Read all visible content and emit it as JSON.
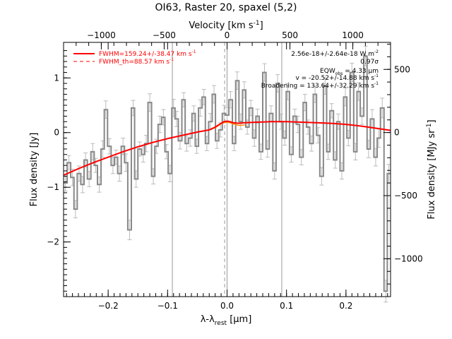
{
  "chart_data": {
    "type": "line",
    "title": "OI63, Raster 20, spaxel (5,2)",
    "xlabel": "λ-λ",
    "xlabel_sub": "rest",
    "xlabel_unit": "[μm]",
    "ylabel": "Flux density [Jy]",
    "ylabel_right": "Flux density [MJy sr",
    "ylabel_right_sup": "-1",
    "ylabel_right_close": "]",
    "top_axis_label": "Velocity [km s",
    "top_axis_sup": "-1",
    "top_axis_close": "]",
    "xlim": [
      -0.275,
      0.275
    ],
    "ylim": [
      -3.0,
      1.65
    ],
    "right_ylim": [
      -1300,
      714
    ],
    "top_xlim": [
      -1300,
      1300
    ],
    "x_ticks": [
      -0.2,
      -0.1,
      0.0,
      0.1,
      0.2
    ],
    "x_tick_labels": [
      "−0.2",
      "−0.1",
      "0.0",
      "0.1",
      "0.2"
    ],
    "y_ticks": [
      -2,
      -1,
      0,
      1
    ],
    "y_tick_labels": [
      "−2",
      "−1",
      "0",
      "1"
    ],
    "right_ticks": [
      -1000,
      -500,
      0,
      500
    ],
    "right_tick_labels": [
      "−1000",
      "−500",
      "0",
      "500"
    ],
    "top_ticks": [
      -1000,
      -500,
      0,
      500,
      1000
    ],
    "top_tick_labels": [
      "−1000",
      "−500",
      "0",
      "500",
      "1000"
    ],
    "vertical_lines": [
      -0.092,
      0.0,
      0.092
    ],
    "dashed_vline": -0.004,
    "legend": [
      {
        "label": "FWHM=159.24+/-38.47 km s",
        "sup": "-1",
        "style": "solid",
        "color": "#ff0000"
      },
      {
        "label": "FWHM_th=88.57 km s",
        "sup": "-1",
        "style": "dashed",
        "color": "#ff0000"
      }
    ],
    "annotations": [
      "2.56e-18+/-2.64e-18 W m",
      "0.97σ",
      "EQW",
      "= 4.33 μm",
      "v = -20.52+/-14.88 km s",
      "Broadening = 133.64+/-32.29 km s"
    ],
    "annotation_subs": [
      "-2",
      "obs",
      "-1",
      "-1"
    ],
    "series": [
      {
        "name": "data",
        "color": "#888888",
        "x": [
          -0.272,
          -0.266,
          -0.26,
          -0.255,
          -0.249,
          -0.243,
          -0.238,
          -0.232,
          -0.226,
          -0.221,
          -0.215,
          -0.209,
          -0.204,
          -0.198,
          -0.192,
          -0.187,
          -0.181,
          -0.175,
          -0.17,
          -0.164,
          -0.158,
          -0.153,
          -0.147,
          -0.141,
          -0.136,
          -0.13,
          -0.124,
          -0.119,
          -0.113,
          -0.107,
          -0.102,
          -0.096,
          -0.09,
          -0.085,
          -0.079,
          -0.073,
          -0.068,
          -0.062,
          -0.056,
          -0.051,
          -0.045,
          -0.039,
          -0.034,
          -0.028,
          -0.022,
          -0.017,
          -0.011,
          -0.005,
          0.0,
          0.006,
          0.012,
          0.017,
          0.023,
          0.029,
          0.034,
          0.04,
          0.046,
          0.051,
          0.057,
          0.063,
          0.068,
          0.074,
          0.08,
          0.085,
          0.091,
          0.097,
          0.102,
          0.108,
          0.114,
          0.119,
          0.125,
          0.131,
          0.136,
          0.142,
          0.148,
          0.153,
          0.159,
          0.165,
          0.17,
          0.176,
          0.182,
          0.187,
          0.193,
          0.199,
          0.204,
          0.21,
          0.216,
          0.221,
          0.227,
          0.233,
          0.238,
          0.244,
          0.25,
          0.255,
          0.261,
          0.267,
          0.272
        ],
        "values": [
          -0.92,
          -0.55,
          -0.82,
          -1.4,
          -0.75,
          -0.95,
          -0.5,
          -0.85,
          -0.35,
          -0.6,
          -0.95,
          -0.3,
          0.42,
          -0.25,
          -0.6,
          -0.45,
          -0.75,
          -0.25,
          -0.55,
          -1.78,
          0.45,
          -0.85,
          -0.3,
          -0.4,
          -0.2,
          0.55,
          -0.8,
          -0.25,
          0.15,
          0.28,
          -0.35,
          -0.75,
          0.45,
          0.25,
          -0.15,
          0.6,
          -0.2,
          -0.1,
          0.35,
          -0.25,
          0.45,
          0.65,
          -0.2,
          0.2,
          0.7,
          -0.15,
          0.05,
          0.35,
          0.32,
          0.6,
          -0.2,
          0.95,
          0.2,
          0.78,
          0.1,
          0.45,
          -0.1,
          0.3,
          -0.35,
          1.1,
          -0.3,
          0.35,
          -0.7,
          0.9,
          0.2,
          -0.1,
          0.75,
          -0.4,
          0.3,
          0.15,
          -0.45,
          0.55,
          0.1,
          -0.2,
          0.7,
          -0.05,
          -0.8,
          0.85,
          -0.35,
          0.4,
          -0.5,
          0.2,
          -0.7,
          0.65,
          -0.1,
          1.1,
          -0.35,
          0.75,
          0.3,
          1.4,
          -0.3,
          0.25,
          -0.45,
          -0.1,
          0.45,
          -2.9,
          -0.75
        ],
        "errors": [
          0.15,
          0.13,
          0.15,
          0.16,
          0.14,
          0.15,
          0.13,
          0.14,
          0.15,
          0.13,
          0.14,
          0.15,
          0.16,
          0.14,
          0.15,
          0.13,
          0.14,
          0.15,
          0.16,
          0.18,
          0.14,
          0.15,
          0.13,
          0.14,
          0.15,
          0.16,
          0.14,
          0.13,
          0.15,
          0.14,
          0.13,
          0.15,
          0.16,
          0.14,
          0.15,
          0.13,
          0.14,
          0.15,
          0.14,
          0.13,
          0.15,
          0.14,
          0.13,
          0.15,
          0.16,
          0.14,
          0.13,
          0.15,
          0.14,
          0.15,
          0.13,
          0.16,
          0.14,
          0.15,
          0.13,
          0.14,
          0.15,
          0.13,
          0.14,
          0.16,
          0.15,
          0.14,
          0.15,
          0.16,
          0.14,
          0.13,
          0.15,
          0.14,
          0.13,
          0.15,
          0.14,
          0.15,
          0.13,
          0.14,
          0.15,
          0.14,
          0.16,
          0.15,
          0.14,
          0.13,
          0.15,
          0.14,
          0.15,
          0.16,
          0.14,
          0.17,
          0.15,
          0.16,
          0.15,
          0.18,
          0.16,
          0.17,
          0.16,
          0.17,
          0.18,
          0.2,
          0.17
        ]
      },
      {
        "name": "model",
        "color": "#ff0000",
        "x": [
          -0.275,
          -0.25,
          -0.225,
          -0.2,
          -0.175,
          -0.15,
          -0.125,
          -0.1,
          -0.075,
          -0.05,
          -0.03,
          -0.02,
          -0.01,
          -0.005,
          0.0,
          0.005,
          0.01,
          0.02,
          0.03,
          0.05,
          0.075,
          0.1,
          0.125,
          0.15,
          0.175,
          0.2,
          0.225,
          0.25,
          0.275
        ],
        "values": [
          -0.78,
          -0.66,
          -0.55,
          -0.45,
          -0.35,
          -0.26,
          -0.18,
          -0.11,
          -0.05,
          0.01,
          0.05,
          0.1,
          0.17,
          0.2,
          0.21,
          0.2,
          0.18,
          0.17,
          0.18,
          0.19,
          0.2,
          0.2,
          0.19,
          0.18,
          0.17,
          0.15,
          0.12,
          0.08,
          0.04
        ]
      },
      {
        "name": "baseline-orange",
        "color": "#ff8c00",
        "x": [
          -0.03,
          -0.02,
          -0.01,
          -0.005,
          0.0,
          0.005,
          0.01,
          0.02,
          0.03
        ],
        "values": [
          0.05,
          0.09,
          0.16,
          0.18,
          0.19,
          0.18,
          0.16,
          0.13,
          0.14
        ]
      }
    ]
  }
}
